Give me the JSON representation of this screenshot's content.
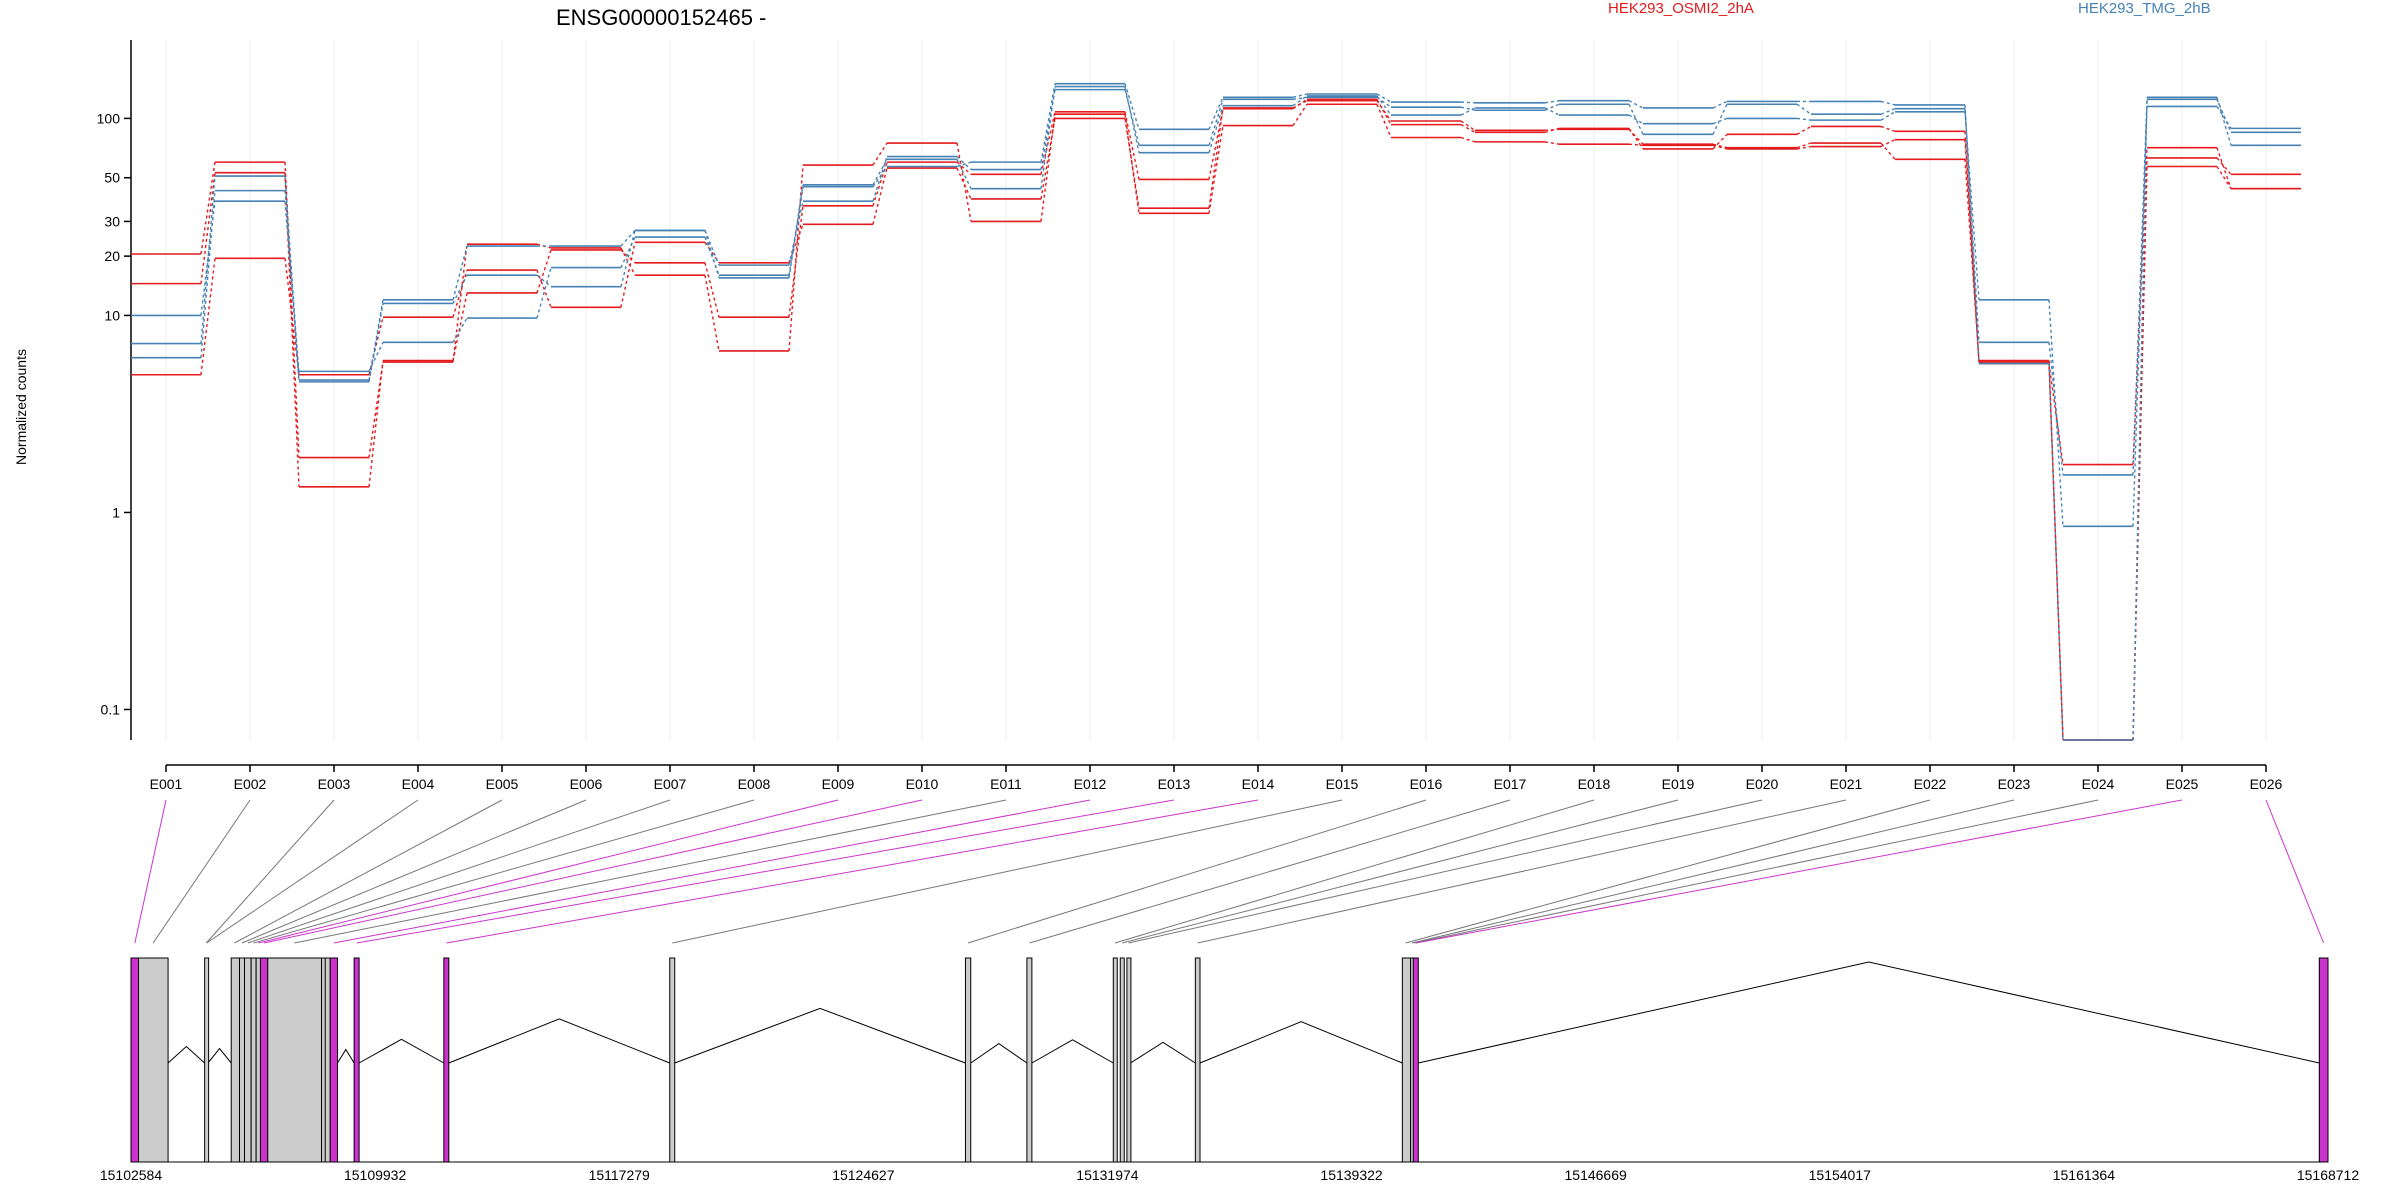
{
  "chart_data": {
    "type": "line",
    "title": "ENSG00000152465 -",
    "ylabel": "Normalized counts",
    "xlabel": "",
    "y_scale": "log",
    "ylim": [
      0.07,
      250
    ],
    "yticks": [
      0.1,
      1,
      10,
      20,
      30,
      50,
      100
    ],
    "ytick_labels": [
      "0.1",
      "1",
      "10",
      "20",
      "30",
      "50",
      "100"
    ],
    "grid": "vertical",
    "legend_placement": "top",
    "categories": [
      "E001",
      "E002",
      "E003",
      "E004",
      "E005",
      "E006",
      "E007",
      "E008",
      "E009",
      "E010",
      "E011",
      "E012",
      "E013",
      "E014",
      "E015",
      "E016",
      "E017",
      "E018",
      "E019",
      "E020",
      "E021",
      "E022",
      "E023",
      "E024",
      "E025",
      "E026"
    ],
    "series": [
      {
        "group": "HEK293_OSMI2_2hA",
        "color": "#e41a1c",
        "values": [
          20.5,
          60,
          1.9,
          5.8,
          23,
          22,
          16,
          6.6,
          58,
          75,
          30,
          105,
          33,
          92,
          118,
          80,
          76,
          74,
          73,
          70,
          72,
          78,
          5.8,
          0.07,
          57,
          44
        ]
      },
      {
        "group": "HEK293_OSMI2_2hA",
        "color": "#e41a1c",
        "values": [
          14.5,
          53,
          1.35,
          5.9,
          13,
          21.5,
          18.5,
          9.8,
          36,
          60,
          52,
          108,
          49,
          112,
          125,
          93,
          85,
          89,
          70,
          83,
          91,
          86,
          5.7,
          1.75,
          71,
          44
        ]
      },
      {
        "group": "HEK293_OSMI2_2hA",
        "color": "#e41a1c",
        "values": [
          5,
          19.5,
          5,
          9.8,
          17,
          11,
          23.5,
          18.5,
          29,
          56,
          39,
          100,
          35,
          113,
          123,
          97,
          87,
          88,
          74,
          71,
          75,
          62,
          5.9,
          0.07,
          63,
          52
        ]
      },
      {
        "group": "HEK293_TMG_2hB",
        "color": "#4682b4",
        "values": [
          10,
          38,
          5.2,
          7.3,
          9.7,
          17.5,
          25,
          16,
          46,
          62,
          44,
          145,
          67,
          116,
          130,
          104,
          113,
          104,
          94,
          100,
          98,
          108,
          12,
          0.85,
          115,
          89
        ]
      },
      {
        "group": "HEK293_TMG_2hB",
        "color": "#4682b4",
        "values": [
          6.1,
          43,
          4.6,
          11.5,
          16,
          14,
          27,
          18,
          38,
          64,
          55,
          140,
          73,
          125,
          128,
          114,
          110,
          118,
          83,
          118,
          105,
          112,
          7.3,
          1.55,
          125,
          85
        ]
      },
      {
        "group": "HEK293_TMG_2hB",
        "color": "#4682b4",
        "values": [
          7.2,
          51,
          4.7,
          12,
          22.5,
          22.5,
          27,
          15.5,
          45,
          57,
          60,
          150,
          88,
          128,
          133,
          121,
          120,
          123,
          113,
          122,
          122,
          117,
          5.7,
          0.07,
          128,
          73
        ]
      }
    ],
    "annotations": {
      "legend": [
        {
          "label": "HEK293_OSMI2_2hA",
          "color": "#e41a1c"
        },
        {
          "label": "HEK293_TMG_2hB",
          "color": "#4682b4"
        }
      ],
      "gene_model": {
        "coordinate_range": [
          15102584,
          15168712
        ],
        "coordinate_ticks": [
          15102584,
          15109932,
          15117279,
          15124627,
          15131974,
          15139322,
          15146669,
          15154017,
          15161364,
          15168712
        ],
        "coordinate_tick_labels": [
          "15102584",
          "15109932",
          "15117279",
          "15124627",
          "15131974",
          "15139322",
          "15146669",
          "15154017",
          "15161364",
          "15168712"
        ],
        "highlight_color": "#cc33cc",
        "feature_color": "#cccccc",
        "exons": [
          {
            "start": 15102584,
            "end": 15102810,
            "highlight": true
          },
          {
            "start": 15102810,
            "end": 15103700,
            "highlight": false
          },
          {
            "start": 15104800,
            "end": 15104900,
            "highlight": false
          },
          {
            "start": 15105600,
            "end": 15105850,
            "highlight": false
          },
          {
            "start": 15105850,
            "end": 15106000,
            "highlight": false
          },
          {
            "start": 15106000,
            "end": 15106200,
            "highlight": false
          },
          {
            "start": 15106200,
            "end": 15106350,
            "highlight": false
          },
          {
            "start": 15106350,
            "end": 15106480,
            "highlight": false
          },
          {
            "start": 15106480,
            "end": 15106700,
            "highlight": true
          },
          {
            "start": 15106700,
            "end": 15108320,
            "highlight": false
          },
          {
            "start": 15108320,
            "end": 15108430,
            "highlight": false
          },
          {
            "start": 15108430,
            "end": 15108580,
            "highlight": false
          },
          {
            "start": 15108580,
            "end": 15108800,
            "highlight": true
          },
          {
            "start": 15109300,
            "end": 15109450,
            "highlight": true
          },
          {
            "start": 15112000,
            "end": 15112150,
            "highlight": true
          },
          {
            "start": 15118800,
            "end": 15118950,
            "highlight": false
          },
          {
            "start": 15127700,
            "end": 15127860,
            "highlight": false
          },
          {
            "start": 15129550,
            "end": 15129700,
            "highlight": false
          },
          {
            "start": 15132150,
            "end": 15132260,
            "highlight": false
          },
          {
            "start": 15132360,
            "end": 15132470,
            "highlight": false
          },
          {
            "start": 15132560,
            "end": 15132670,
            "highlight": false
          },
          {
            "start": 15134620,
            "end": 15134760,
            "highlight": false
          },
          {
            "start": 15140850,
            "end": 15141100,
            "highlight": false
          },
          {
            "start": 15141100,
            "end": 15141180,
            "highlight": false
          },
          {
            "start": 15141180,
            "end": 15141330,
            "highlight": true
          },
          {
            "start": 15168450,
            "end": 15168712,
            "highlight": true
          }
        ],
        "exon_links": [
          {
            "exon": "E001",
            "target": 15102700,
            "highlight": true
          },
          {
            "exon": "E002",
            "target": 15103250,
            "highlight": false
          },
          {
            "exon": "E003",
            "target": 15104850,
            "highlight": false
          },
          {
            "exon": "E004",
            "target": 15104860,
            "highlight": false
          },
          {
            "exon": "E005",
            "target": 15105700,
            "highlight": false
          },
          {
            "exon": "E006",
            "target": 15105920,
            "highlight": false
          },
          {
            "exon": "E007",
            "target": 15106100,
            "highlight": false
          },
          {
            "exon": "E008",
            "target": 15106270,
            "highlight": false
          },
          {
            "exon": "E009",
            "target": 15106420,
            "highlight": true
          },
          {
            "exon": "E010",
            "target": 15106590,
            "highlight": true
          },
          {
            "exon": "E011",
            "target": 15107500,
            "highlight": false
          },
          {
            "exon": "E012",
            "target": 15108690,
            "highlight": true
          },
          {
            "exon": "E013",
            "target": 15109380,
            "highlight": true
          },
          {
            "exon": "E014",
            "target": 15112080,
            "highlight": true
          },
          {
            "exon": "E015",
            "target": 15118880,
            "highlight": false
          },
          {
            "exon": "E016",
            "target": 15127780,
            "highlight": false
          },
          {
            "exon": "E017",
            "target": 15129630,
            "highlight": false
          },
          {
            "exon": "E018",
            "target": 15132200,
            "highlight": false
          },
          {
            "exon": "E019",
            "target": 15132420,
            "highlight": false
          },
          {
            "exon": "E020",
            "target": 15132610,
            "highlight": false
          },
          {
            "exon": "E021",
            "target": 15134690,
            "highlight": false
          },
          {
            "exon": "E022",
            "target": 15140950,
            "highlight": false
          },
          {
            "exon": "E023",
            "target": 15141140,
            "highlight": false
          },
          {
            "exon": "E024",
            "target": 15141210,
            "highlight": false
          },
          {
            "exon": "E025",
            "target": 15141260,
            "highlight": true
          },
          {
            "exon": "E026",
            "target": 15168580,
            "highlight": true
          }
        ]
      }
    }
  }
}
